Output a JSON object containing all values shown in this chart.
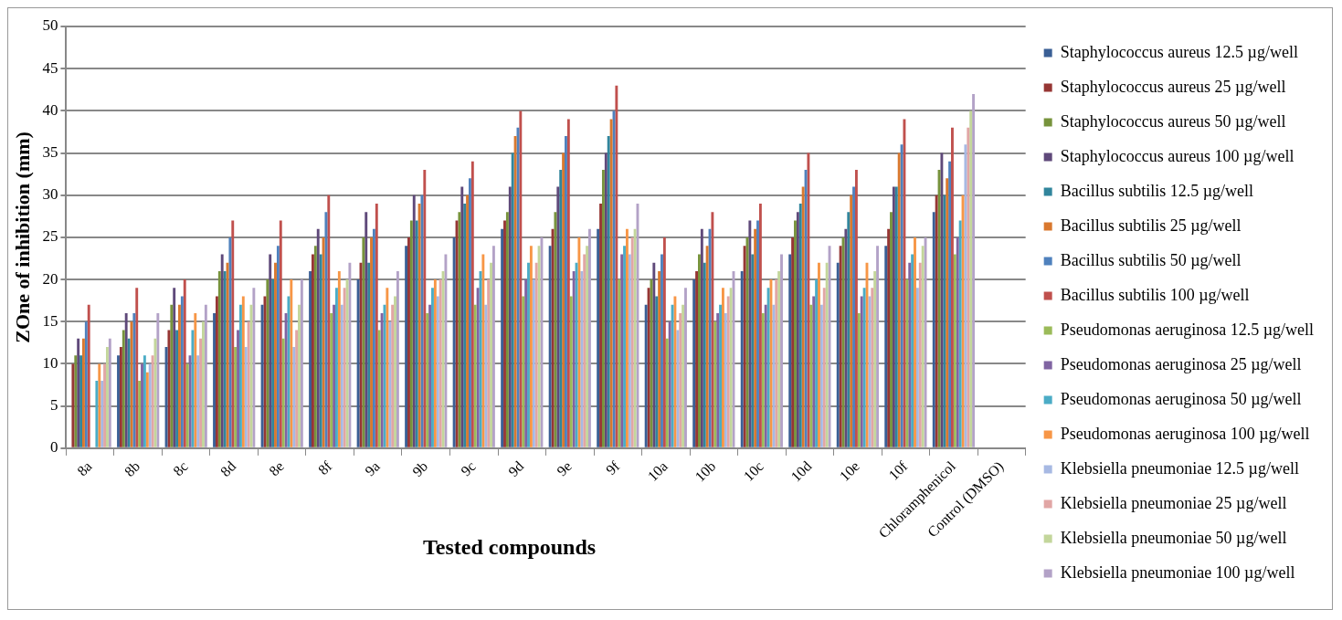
{
  "chart_data": {
    "type": "bar",
    "xlabel": "Tested compounds",
    "ylabel": "ZOne of inhibition (mm)",
    "categories": [
      "8a",
      "8b",
      "8c",
      "8d",
      "8e",
      "8f",
      "9a",
      "9b",
      "9c",
      "9d",
      "9e",
      "9f",
      "10a",
      "10b",
      "10c",
      "10d",
      "10e",
      "10f",
      "Chloramphenicol",
      "Control (DMSO)"
    ],
    "ylim": [
      0,
      50
    ],
    "yticks": [
      0,
      5,
      10,
      15,
      20,
      25,
      30,
      35,
      40,
      45,
      50
    ],
    "grid": "y",
    "legend": "right",
    "series": [
      {
        "name": "Staphylococcus aureus 12.5 µg/well",
        "color": "#3a5f95",
        "values": [
          null,
          11,
          12,
          16,
          17,
          21,
          20,
          24,
          25,
          26,
          24,
          26,
          17,
          20,
          21,
          23,
          22,
          24,
          28,
          null
        ]
      },
      {
        "name": "Staphylococcus aureus 25 µg/well",
        "color": "#963634",
        "values": [
          10,
          12,
          14,
          18,
          18,
          23,
          22,
          25,
          27,
          27,
          26,
          29,
          19,
          21,
          24,
          25,
          24,
          26,
          30,
          null
        ]
      },
      {
        "name": "Staphylococcus aureus 50 µg/well",
        "color": "#77933c",
        "values": [
          11,
          14,
          17,
          21,
          20,
          24,
          25,
          27,
          28,
          28,
          28,
          33,
          20,
          23,
          25,
          27,
          25,
          28,
          33,
          null
        ]
      },
      {
        "name": "Staphylococcus aureus 100 µg/well",
        "color": "#5f497a",
        "values": [
          13,
          16,
          19,
          23,
          23,
          26,
          28,
          30,
          31,
          31,
          31,
          35,
          22,
          26,
          27,
          28,
          26,
          31,
          35,
          null
        ]
      },
      {
        "name": "Bacillus subtilis 12.5 µg/well",
        "color": "#31859c",
        "values": [
          11,
          13,
          14,
          21,
          20,
          23,
          22,
          27,
          29,
          35,
          33,
          37,
          18,
          22,
          23,
          29,
          28,
          31,
          30,
          null
        ]
      },
      {
        "name": "Bacillus subtilis 25 µg/well",
        "color": "#d9782e",
        "values": [
          13,
          15,
          17,
          22,
          22,
          25,
          25,
          29,
          30,
          37,
          35,
          39,
          21,
          24,
          26,
          31,
          30,
          35,
          32,
          null
        ]
      },
      {
        "name": "Bacillus subtilis 50 µg/well",
        "color": "#4f81bd",
        "values": [
          15,
          16,
          18,
          25,
          24,
          28,
          26,
          30,
          32,
          38,
          37,
          40,
          23,
          26,
          27,
          33,
          31,
          36,
          34,
          null
        ]
      },
      {
        "name": "Bacillus subtilis 100 µg/well",
        "color": "#c0504d",
        "values": [
          17,
          19,
          20,
          27,
          27,
          30,
          29,
          33,
          34,
          40,
          39,
          43,
          25,
          28,
          29,
          35,
          33,
          39,
          38,
          null
        ]
      },
      {
        "name": "Pseudomonas aeruginosa 12.5 µg/well",
        "color": "#9bbb59",
        "values": [
          null,
          8,
          10,
          12,
          13,
          16,
          14,
          16,
          17,
          18,
          18,
          20,
          13,
          15,
          16,
          17,
          16,
          20,
          23,
          null
        ]
      },
      {
        "name": "Pseudomonas aeruginosa 25 µg/well",
        "color": "#8064a2",
        "values": [
          null,
          10,
          11,
          14,
          16,
          17,
          16,
          17,
          19,
          20,
          21,
          23,
          15,
          16,
          17,
          18,
          18,
          22,
          25,
          null
        ]
      },
      {
        "name": "Pseudomonas aeruginosa 50 µg/well",
        "color": "#4bacc6",
        "values": [
          8,
          11,
          14,
          17,
          18,
          19,
          17,
          19,
          21,
          22,
          22,
          24,
          17,
          17,
          19,
          20,
          19,
          23,
          27,
          null
        ]
      },
      {
        "name": "Pseudomonas aeruginosa 100 µg/well",
        "color": "#f79646",
        "values": [
          10,
          9,
          16,
          18,
          20,
          21,
          19,
          20,
          23,
          24,
          25,
          26,
          18,
          19,
          20,
          22,
          22,
          25,
          30,
          null
        ]
      },
      {
        "name": "Klebsiella pneumoniae 12.5 µg/well",
        "color": "#a7b9e3",
        "values": [
          8,
          10,
          11,
          12,
          12,
          17,
          15,
          18,
          17,
          20,
          21,
          23,
          14,
          16,
          17,
          17,
          18,
          19,
          36,
          null
        ]
      },
      {
        "name": "Klebsiella pneumoniae 25 µg/well",
        "color": "#e1a6a5",
        "values": [
          10,
          11,
          13,
          15,
          14,
          19,
          17,
          20,
          20,
          22,
          23,
          25,
          16,
          18,
          20,
          19,
          19,
          22,
          38,
          null
        ]
      },
      {
        "name": "Klebsiella pneumoniae 50 µg/well",
        "color": "#c3d69b",
        "values": [
          12,
          13,
          15,
          17,
          17,
          20,
          18,
          21,
          22,
          24,
          24,
          26,
          17,
          19,
          21,
          22,
          21,
          24,
          40,
          null
        ]
      },
      {
        "name": "Klebsiella pneumoniae 100 µg/well",
        "color": "#b3a2c7",
        "values": [
          13,
          16,
          17,
          19,
          20,
          22,
          21,
          23,
          24,
          25,
          26,
          29,
          19,
          21,
          23,
          24,
          24,
          25,
          42,
          null
        ]
      }
    ]
  }
}
